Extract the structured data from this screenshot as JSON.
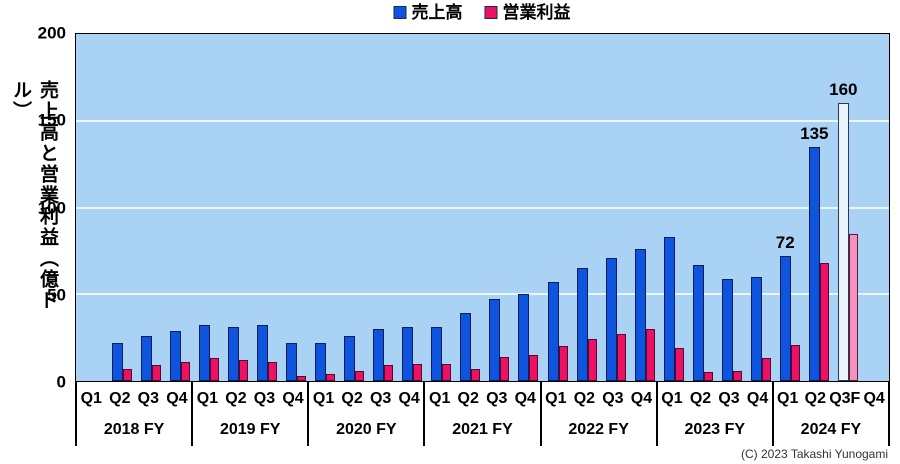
{
  "copyright": "(C) 2023 Takashi Yunogami",
  "colors": {
    "revenue": "#0E54DE",
    "operating": "#ED1164",
    "revenue_forecast": "#E9F4FB",
    "operating_forecast": "#F591BA",
    "plot_bg": "#A9D2F4",
    "gridline": "#EDF6FD"
  },
  "chart_data": {
    "type": "bar",
    "title": "",
    "xlabel": "",
    "ylabel": "売上高と営業利益（億ドル）",
    "ylim": [
      0,
      200
    ],
    "yticks": [
      0,
      50,
      100,
      150,
      200
    ],
    "gridlines": [
      50,
      100,
      150
    ],
    "grid": true,
    "legend_position": "top-center",
    "series_names": [
      "売上高",
      "営業利益"
    ],
    "years": [
      {
        "label": "2018 FY",
        "quarters": [
          "Q1",
          "Q2",
          "Q3",
          "Q4"
        ],
        "revenue": [
          null,
          22,
          26,
          29
        ],
        "operating_income": [
          null,
          7,
          9,
          11
        ]
      },
      {
        "label": "2019 FY",
        "quarters": [
          "Q1",
          "Q2",
          "Q3",
          "Q4"
        ],
        "revenue": [
          32,
          31,
          32,
          22
        ],
        "operating_income": [
          13,
          12,
          11,
          3
        ]
      },
      {
        "label": "2020 FY",
        "quarters": [
          "Q1",
          "Q2",
          "Q3",
          "Q4"
        ],
        "revenue": [
          22,
          26,
          30,
          31
        ],
        "operating_income": [
          4,
          6,
          9,
          10
        ]
      },
      {
        "label": "2021 FY",
        "quarters": [
          "Q1",
          "Q2",
          "Q3",
          "Q4"
        ],
        "revenue": [
          31,
          39,
          47,
          50
        ],
        "operating_income": [
          10,
          7,
          14,
          15
        ]
      },
      {
        "label": "2022 FY",
        "quarters": [
          "Q1",
          "Q2",
          "Q3",
          "Q4"
        ],
        "revenue": [
          57,
          65,
          71,
          76
        ],
        "operating_income": [
          20,
          24,
          27,
          30
        ]
      },
      {
        "label": "2023 FY",
        "quarters": [
          "Q1",
          "Q2",
          "Q3",
          "Q4"
        ],
        "revenue": [
          83,
          67,
          59,
          60
        ],
        "operating_income": [
          19,
          5,
          6,
          13
        ]
      },
      {
        "label": "2024 FY",
        "quarters": [
          "Q1",
          "Q2",
          "Q3F",
          "Q4"
        ],
        "revenue": [
          72,
          135,
          160,
          null
        ],
        "operating_income": [
          21,
          68,
          85,
          null
        ],
        "forecast_quarter": 2,
        "data_labels": {
          "0": "72",
          "1": "135",
          "2": "160"
        }
      }
    ]
  }
}
